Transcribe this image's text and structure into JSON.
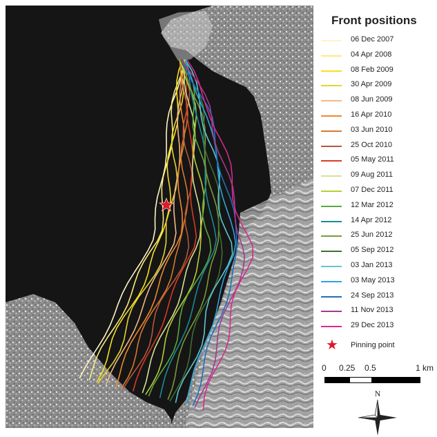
{
  "legend": {
    "title": "Front positions",
    "entries": [
      {
        "label": "06 Dec 2007",
        "color": "#fdf5c8"
      },
      {
        "label": "04 Apr 2008",
        "color": "#fbeb7d"
      },
      {
        "label": "08 Feb 2009",
        "color": "#f7e022"
      },
      {
        "label": "30 Apr 2009",
        "color": "#e6d330"
      },
      {
        "label": "08 Jun 2009",
        "color": "#f3b987"
      },
      {
        "label": "16 Apr 2010",
        "color": "#ee8a2b"
      },
      {
        "label": "03 Jun 2010",
        "color": "#d9782d"
      },
      {
        "label": "25 Oct 2010",
        "color": "#b5583a"
      },
      {
        "label": "05 May 2011",
        "color": "#d93a25"
      },
      {
        "label": "09 Aug 2011",
        "color": "#d5e393"
      },
      {
        "label": "07 Dec 2011",
        "color": "#b6cf3a"
      },
      {
        "label": "12 Mar 2012",
        "color": "#58a93f"
      },
      {
        "label": "14 Apr 2012",
        "color": "#1c8a97"
      },
      {
        "label": "25 Jun 2012",
        "color": "#7a9a3a"
      },
      {
        "label": "05 Sep 2012",
        "color": "#3e6f35"
      },
      {
        "label": "03 Jan 2013",
        "color": "#5fc8cf"
      },
      {
        "label": "03 May 2013",
        "color": "#2ea3da"
      },
      {
        "label": "24 Sep 2013",
        "color": "#1f6fb7"
      },
      {
        "label": "11 Nov 2013",
        "color": "#a3398f"
      },
      {
        "label": "29 Dec 2013",
        "color": "#d62a8c"
      }
    ],
    "pinning_label": "Pinning point",
    "pinning_color": "#e0192b"
  },
  "scale": {
    "ticks": [
      "0",
      "0.25",
      "0.5",
      "1 km"
    ]
  },
  "north": {
    "label": "N"
  }
}
